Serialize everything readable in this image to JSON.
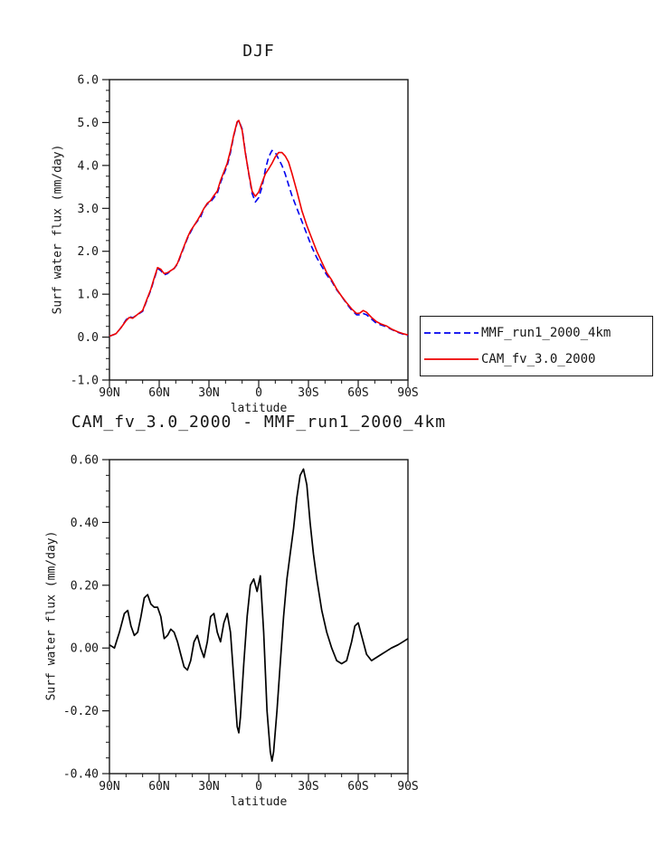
{
  "page": {
    "background": "#ffffff",
    "text_color": "#161616"
  },
  "chart_data": [
    {
      "type": "line",
      "title": "DJF",
      "xlabel": "latitude",
      "ylabel": "Surf water flux (mm/day)",
      "xlim": [
        90,
        -90
      ],
      "ylim": [
        -1.0,
        6.0
      ],
      "x_minor_step": 10,
      "y_minor_step": 0.25,
      "grid": false,
      "x_ticks": [
        {
          "value": 90,
          "label": "90N"
        },
        {
          "value": 60,
          "label": "60N"
        },
        {
          "value": 30,
          "label": "30N"
        },
        {
          "value": 0,
          "label": "0"
        },
        {
          "value": -30,
          "label": "30S"
        },
        {
          "value": -60,
          "label": "60S"
        },
        {
          "value": -90,
          "label": "90S"
        }
      ],
      "y_ticks": [
        {
          "value": -1.0,
          "label": "-1.0"
        },
        {
          "value": 0.0,
          "label": "0.0"
        },
        {
          "value": 1.0,
          "label": "1.0"
        },
        {
          "value": 2.0,
          "label": "2.0"
        },
        {
          "value": 3.0,
          "label": "3.0"
        },
        {
          "value": 4.0,
          "label": "4.0"
        },
        {
          "value": 5.0,
          "label": "5.0"
        },
        {
          "value": 6.0,
          "label": "6.0"
        }
      ],
      "x": [
        90,
        86,
        83,
        80,
        78,
        76,
        74,
        72,
        70,
        68,
        65,
        63,
        61,
        59,
        57,
        55,
        53,
        51,
        49,
        47,
        45,
        43,
        41,
        39,
        37,
        35,
        33,
        31,
        29,
        27,
        25,
        23,
        21,
        19,
        17,
        15,
        13,
        12,
        10,
        8,
        6,
        4,
        2,
        0,
        -2,
        -4,
        -6,
        -8,
        -10,
        -12,
        -14,
        -16,
        -18,
        -20,
        -23,
        -26,
        -29,
        -32,
        -35,
        -38,
        -41,
        -44,
        -47,
        -50,
        -53,
        -56,
        -59,
        -61,
        -63,
        -65,
        -68,
        -71,
        -74,
        -77,
        -80,
        -84,
        -87,
        -90
      ],
      "series": [
        {
          "name": "MMF_run1_2000_4km",
          "color": "#0000ee",
          "style": "dashed",
          "dash": "7 4",
          "width": 1.6,
          "values": [
            0.02,
            0.08,
            0.22,
            0.4,
            0.48,
            0.45,
            0.5,
            0.55,
            0.6,
            0.8,
            1.1,
            1.35,
            1.6,
            1.55,
            1.45,
            1.48,
            1.55,
            1.6,
            1.7,
            1.9,
            2.1,
            2.3,
            2.45,
            2.6,
            2.7,
            2.8,
            3.0,
            3.1,
            3.15,
            3.25,
            3.35,
            3.6,
            3.8,
            4.0,
            4.3,
            4.7,
            5.0,
            5.05,
            4.85,
            4.3,
            3.8,
            3.35,
            3.15,
            3.25,
            3.5,
            3.9,
            4.2,
            4.35,
            4.3,
            4.15,
            4.0,
            3.8,
            3.55,
            3.3,
            3.0,
            2.7,
            2.4,
            2.1,
            1.85,
            1.65,
            1.45,
            1.3,
            1.1,
            0.95,
            0.78,
            0.63,
            0.52,
            0.52,
            0.55,
            0.52,
            0.42,
            0.32,
            0.28,
            0.24,
            0.18,
            0.11,
            0.07,
            0.03
          ]
        },
        {
          "name": "CAM_fv_3.0_2000",
          "color": "#ee0000",
          "style": "solid",
          "dash": "",
          "width": 1.6,
          "values": [
            0.02,
            0.08,
            0.22,
            0.38,
            0.46,
            0.44,
            0.5,
            0.56,
            0.62,
            0.82,
            1.12,
            1.38,
            1.62,
            1.58,
            1.48,
            1.5,
            1.55,
            1.6,
            1.72,
            1.92,
            2.12,
            2.32,
            2.48,
            2.6,
            2.72,
            2.85,
            3.0,
            3.12,
            3.18,
            3.3,
            3.4,
            3.65,
            3.85,
            4.05,
            4.35,
            4.72,
            5.02,
            5.05,
            4.82,
            4.28,
            3.82,
            3.4,
            3.28,
            3.38,
            3.6,
            3.8,
            3.92,
            4.05,
            4.2,
            4.3,
            4.3,
            4.22,
            4.08,
            3.82,
            3.4,
            2.95,
            2.6,
            2.3,
            2.0,
            1.75,
            1.5,
            1.33,
            1.12,
            0.95,
            0.8,
            0.66,
            0.55,
            0.56,
            0.62,
            0.58,
            0.46,
            0.36,
            0.3,
            0.26,
            0.19,
            0.12,
            0.08,
            0.05
          ]
        }
      ],
      "legend": {
        "position": "outside-right-bottom",
        "entries": [
          "MMF_run1_2000_4km",
          "CAM_fv_3.0_2000"
        ]
      }
    },
    {
      "type": "line",
      "title": "CAM_fv_3.0_2000 - MMF_run1_2000_4km",
      "xlabel": "latitude",
      "ylabel": "Surf water flux (mm/day)",
      "xlim": [
        90,
        -90
      ],
      "ylim": [
        -0.4,
        0.6
      ],
      "x_minor_step": 10,
      "y_minor_step": 0.05,
      "grid": false,
      "x_ticks": [
        {
          "value": 90,
          "label": "90N"
        },
        {
          "value": 60,
          "label": "60N"
        },
        {
          "value": 30,
          "label": "30N"
        },
        {
          "value": 0,
          "label": "0"
        },
        {
          "value": -30,
          "label": "30S"
        },
        {
          "value": -60,
          "label": "60S"
        },
        {
          "value": -90,
          "label": "90S"
        }
      ],
      "y_ticks": [
        {
          "value": -0.4,
          "label": "-0.40"
        },
        {
          "value": -0.2,
          "label": "-0.20"
        },
        {
          "value": 0.0,
          "label": "0.00"
        },
        {
          "value": 0.2,
          "label": "0.20"
        },
        {
          "value": 0.4,
          "label": "0.40"
        },
        {
          "value": 0.6,
          "label": "0.60"
        }
      ],
      "x": [
        90,
        87,
        84,
        81,
        79,
        77,
        75,
        73,
        71,
        69,
        67,
        65,
        63,
        61,
        59,
        57,
        55,
        53,
        51,
        49,
        47,
        45,
        43,
        41,
        39,
        37,
        35,
        33,
        31,
        29,
        27,
        25,
        23,
        21,
        19,
        17,
        15,
        13,
        12,
        11,
        9,
        7,
        5,
        3,
        1,
        -1,
        -3,
        -5,
        -7,
        -8,
        -9,
        -11,
        -13,
        -15,
        -17,
        -19,
        -21,
        -23,
        -25,
        -27,
        -29,
        -31,
        -33,
        -35,
        -38,
        -41,
        -44,
        -47,
        -50,
        -53,
        -56,
        -58,
        -60,
        -62,
        -65,
        -68,
        -71,
        -74,
        -77,
        -80,
        -84,
        -87,
        -90
      ],
      "series": [
        {
          "name": "CAM_fv_3.0_2000 - MMF_run1_2000_4km",
          "color": "#000000",
          "style": "solid",
          "dash": "",
          "width": 1.7,
          "values": [
            0.01,
            0.0,
            0.05,
            0.11,
            0.12,
            0.07,
            0.04,
            0.05,
            0.1,
            0.16,
            0.17,
            0.14,
            0.13,
            0.13,
            0.1,
            0.03,
            0.04,
            0.06,
            0.05,
            0.02,
            -0.02,
            -0.06,
            -0.07,
            -0.04,
            0.02,
            0.04,
            0.0,
            -0.03,
            0.02,
            0.1,
            0.11,
            0.05,
            0.02,
            0.08,
            0.11,
            0.05,
            -0.1,
            -0.25,
            -0.27,
            -0.22,
            -0.05,
            0.1,
            0.2,
            0.22,
            0.18,
            0.23,
            0.05,
            -0.2,
            -0.33,
            -0.36,
            -0.33,
            -0.2,
            -0.05,
            0.1,
            0.22,
            0.3,
            0.38,
            0.48,
            0.55,
            0.57,
            0.52,
            0.4,
            0.3,
            0.22,
            0.12,
            0.05,
            0.0,
            -0.04,
            -0.05,
            -0.04,
            0.02,
            0.07,
            0.08,
            0.04,
            -0.02,
            -0.04,
            -0.03,
            -0.02,
            -0.01,
            0.0,
            0.01,
            0.02,
            0.03
          ]
        }
      ],
      "legend": null
    }
  ]
}
